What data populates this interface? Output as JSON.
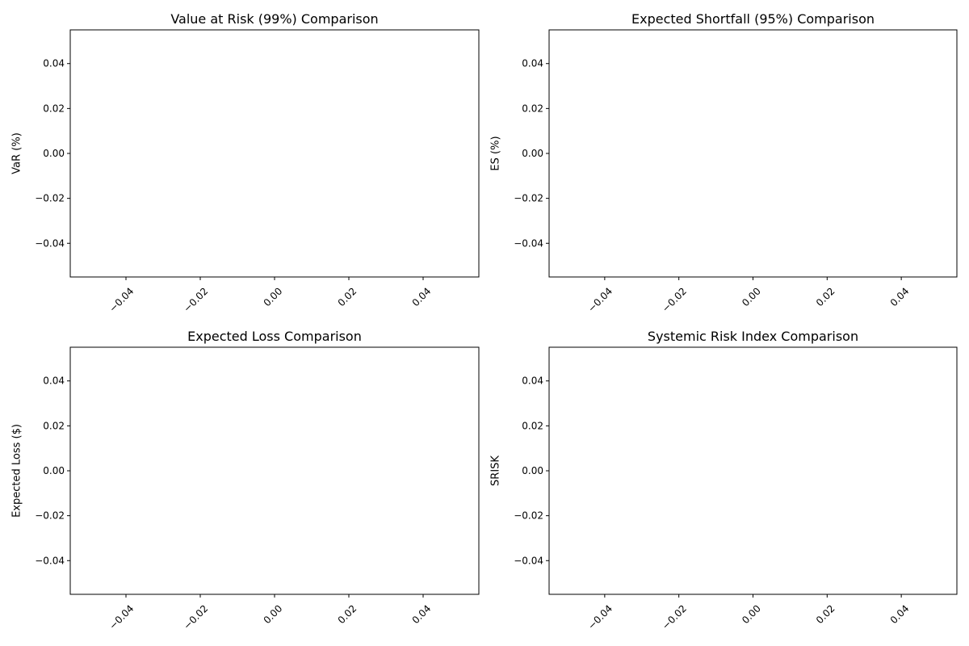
{
  "chart_data": [
    {
      "type": "bar",
      "title": "Value at Risk (99%) Comparison",
      "xlabel": "",
      "ylabel": "VaR (%)",
      "xlim": [
        -0.055,
        0.055
      ],
      "ylim": [
        -0.055,
        0.055
      ],
      "xticks": [
        "−0.04",
        "−0.02",
        "0.00",
        "0.02",
        "0.04"
      ],
      "yticks": [
        "0.04",
        "0.02",
        "0.00",
        "−0.02",
        "−0.04"
      ],
      "xtick_rotation": 45,
      "grid": false,
      "categories": [],
      "values": []
    },
    {
      "type": "bar",
      "title": "Expected Shortfall (95%) Comparison",
      "xlabel": "",
      "ylabel": "ES (%)",
      "xlim": [
        -0.055,
        0.055
      ],
      "ylim": [
        -0.055,
        0.055
      ],
      "xticks": [
        "−0.04",
        "−0.02",
        "0.00",
        "0.02",
        "0.04"
      ],
      "yticks": [
        "0.04",
        "0.02",
        "0.00",
        "−0.02",
        "−0.04"
      ],
      "xtick_rotation": 45,
      "grid": false,
      "categories": [],
      "values": []
    },
    {
      "type": "bar",
      "title": "Expected Loss Comparison",
      "xlabel": "",
      "ylabel": "Expected Loss ($)",
      "xlim": [
        -0.055,
        0.055
      ],
      "ylim": [
        -0.055,
        0.055
      ],
      "xticks": [
        "−0.04",
        "−0.02",
        "0.00",
        "0.02",
        "0.04"
      ],
      "yticks": [
        "0.04",
        "0.02",
        "0.00",
        "−0.02",
        "−0.04"
      ],
      "xtick_rotation": 45,
      "grid": false,
      "categories": [],
      "values": []
    },
    {
      "type": "bar",
      "title": "Systemic Risk Index Comparison",
      "xlabel": "",
      "ylabel": "SRISK",
      "xlim": [
        -0.055,
        0.055
      ],
      "ylim": [
        -0.055,
        0.055
      ],
      "xticks": [
        "−0.04",
        "−0.02",
        "0.00",
        "0.02",
        "0.04"
      ],
      "yticks": [
        "0.04",
        "0.02",
        "0.00",
        "−0.02",
        "−0.04"
      ],
      "xtick_rotation": 45,
      "grid": false,
      "categories": [],
      "values": []
    }
  ],
  "colors": {
    "axis": "#000000",
    "background": "#ffffff"
  }
}
